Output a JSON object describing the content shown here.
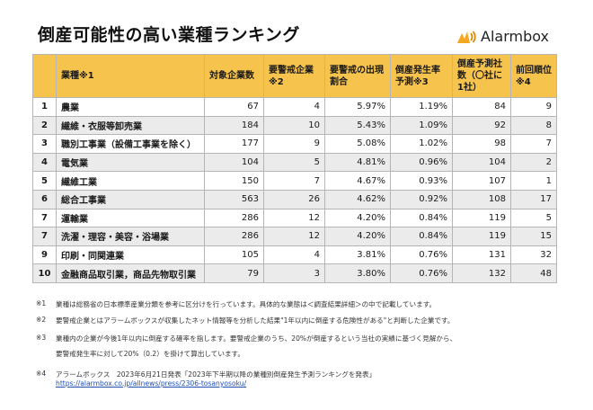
{
  "title": "倒産可能性の高い業種ランキング",
  "brand": {
    "name": "Alarmbox",
    "colors": {
      "orange": "#F5A623",
      "dark": "#E08A00"
    }
  },
  "table": {
    "header_color": "#F6C34D",
    "headers": [
      "",
      "業種※1",
      "対象企業数",
      "要警戒企業※2",
      "要警戒の出現割合",
      "倒産発生率予測※3",
      "倒産予測社数（〇社に1社）",
      "前回順位※4"
    ],
    "rows": [
      {
        "rank": "1",
        "industry": "農業",
        "companies": "67",
        "alert": "4",
        "ratio": "5.97%",
        "rate": "1.19%",
        "one_in": "84",
        "prev": "9"
      },
      {
        "rank": "2",
        "industry": "繊維・衣服等卸売業",
        "companies": "184",
        "alert": "10",
        "ratio": "5.43%",
        "rate": "1.09%",
        "one_in": "92",
        "prev": "8"
      },
      {
        "rank": "3",
        "industry": "職別工事業（設備工事業を除く）",
        "companies": "177",
        "alert": "9",
        "ratio": "5.08%",
        "rate": "1.02%",
        "one_in": "98",
        "prev": "7"
      },
      {
        "rank": "4",
        "industry": "電気業",
        "companies": "104",
        "alert": "5",
        "ratio": "4.81%",
        "rate": "0.96%",
        "one_in": "104",
        "prev": "2"
      },
      {
        "rank": "5",
        "industry": "繊維工業",
        "companies": "150",
        "alert": "7",
        "ratio": "4.67%",
        "rate": "0.93%",
        "one_in": "107",
        "prev": "1"
      },
      {
        "rank": "6",
        "industry": "総合工事業",
        "companies": "563",
        "alert": "26",
        "ratio": "4.62%",
        "rate": "0.92%",
        "one_in": "108",
        "prev": "17"
      },
      {
        "rank": "7",
        "industry": "運輸業",
        "companies": "286",
        "alert": "12",
        "ratio": "4.20%",
        "rate": "0.84%",
        "one_in": "119",
        "prev": "5"
      },
      {
        "rank": "7",
        "industry": "洗濯・理容・美容・浴場業",
        "companies": "286",
        "alert": "12",
        "ratio": "4.20%",
        "rate": "0.84%",
        "one_in": "119",
        "prev": "15"
      },
      {
        "rank": "9",
        "industry": "印刷・同関連業",
        "companies": "105",
        "alert": "4",
        "ratio": "3.81%",
        "rate": "0.76%",
        "one_in": "131",
        "prev": "32"
      },
      {
        "rank": "10",
        "industry": "金融商品取引業，商品先物取引業",
        "companies": "79",
        "alert": "3",
        "ratio": "3.80%",
        "rate": "0.76%",
        "one_in": "132",
        "prev": "48"
      }
    ]
  },
  "notes": [
    {
      "mark": "※1",
      "text": "業種は総務省の日本標準産業分類を参考に区分けを行っています。具体的な業態は＜調査結果詳細＞の中で記載しています。"
    },
    {
      "mark": "※2",
      "text": "要警戒企業とはアラームボックスが収集したネット情報等を分析した結果\"1年以内に倒産する危険性がある\"と判断した企業です。"
    },
    {
      "mark": "※3",
      "text": "業種内の企業が今後1年以内に倒産する確率を指します。要警戒企業のうち、20%が倒産するという当社の実績に基づく見解から、"
    },
    {
      "mark": "",
      "text": "要警戒発生率に対して20%（0.2）を掛けて算出しています。"
    },
    {
      "mark": "※4",
      "text": "アラームボックス　2023年6月21日発表「2023年下半期以降の業種別倒産発生予測ランキングを発表」"
    },
    {
      "mark": "",
      "text": "https://alarmbox.co.jp/allnews/press/2306-tosanyosoku/",
      "link": true
    }
  ]
}
